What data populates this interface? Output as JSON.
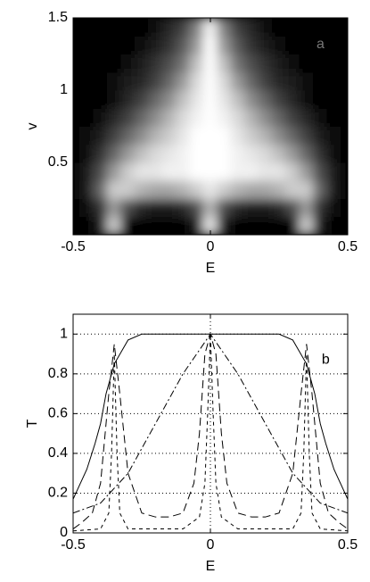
{
  "chart_data": [
    {
      "type": "heatmap",
      "annotation": "a",
      "xlabel": "E",
      "ylabel": "v",
      "xlim": [
        -0.5,
        0.5
      ],
      "ylim": [
        0,
        1.5
      ],
      "xticks": [
        -0.5,
        0,
        0.5
      ],
      "yticks": [
        0.5,
        1,
        1.5
      ],
      "x": [
        -0.5,
        -0.45,
        -0.4,
        -0.35,
        -0.3,
        -0.25,
        -0.2,
        -0.15,
        -0.1,
        -0.05,
        0,
        0.05,
        0.1,
        0.15,
        0.2,
        0.25,
        0.3,
        0.35,
        0.4,
        0.45,
        0.5
      ],
      "y": [
        0.0625,
        0.1875,
        0.3125,
        0.4375,
        0.5625,
        0.6875,
        0.8125,
        0.9375,
        1.0625,
        1.1875,
        1.3125,
        1.4375
      ],
      "z": [
        [
          0,
          0,
          0.1,
          0.8,
          0,
          0,
          0,
          0,
          0,
          0.1,
          0.9,
          0.1,
          0,
          0,
          0,
          0,
          0,
          0.8,
          0.1,
          0,
          0
        ],
        [
          0,
          0.05,
          0.2,
          0.6,
          0.3,
          0.15,
          0.1,
          0.1,
          0.15,
          0.3,
          0.7,
          0.3,
          0.15,
          0.1,
          0.1,
          0.15,
          0.3,
          0.6,
          0.2,
          0.05,
          0
        ],
        [
          0,
          0.1,
          0.4,
          0.8,
          0.8,
          0.7,
          0.65,
          0.65,
          0.7,
          0.8,
          0.9,
          0.8,
          0.7,
          0.65,
          0.65,
          0.7,
          0.8,
          0.8,
          0.4,
          0.1,
          0
        ],
        [
          0,
          0.1,
          0.3,
          0.6,
          0.8,
          0.9,
          0.9,
          0.95,
          0.95,
          1,
          1,
          1,
          0.95,
          0.95,
          0.9,
          0.9,
          0.8,
          0.6,
          0.3,
          0.1,
          0
        ],
        [
          0,
          0.05,
          0.2,
          0.4,
          0.6,
          0.75,
          0.85,
          0.9,
          0.95,
          1,
          1,
          1,
          0.95,
          0.9,
          0.85,
          0.75,
          0.6,
          0.4,
          0.2,
          0.05,
          0
        ],
        [
          0,
          0.05,
          0.1,
          0.25,
          0.4,
          0.55,
          0.7,
          0.8,
          0.9,
          1,
          1,
          1,
          0.9,
          0.8,
          0.7,
          0.55,
          0.4,
          0.25,
          0.1,
          0.05,
          0
        ],
        [
          0,
          0,
          0.05,
          0.15,
          0.25,
          0.4,
          0.55,
          0.7,
          0.85,
          0.95,
          1,
          0.95,
          0.85,
          0.7,
          0.55,
          0.4,
          0.25,
          0.15,
          0.05,
          0,
          0
        ],
        [
          0,
          0,
          0,
          0.05,
          0.15,
          0.25,
          0.4,
          0.55,
          0.75,
          0.9,
          1,
          0.9,
          0.75,
          0.55,
          0.4,
          0.25,
          0.15,
          0.05,
          0,
          0,
          0
        ],
        [
          0,
          0,
          0,
          0.05,
          0.1,
          0.15,
          0.25,
          0.4,
          0.6,
          0.85,
          1,
          0.85,
          0.6,
          0.4,
          0.25,
          0.15,
          0.1,
          0.05,
          0,
          0,
          0
        ],
        [
          0,
          0,
          0,
          0,
          0.05,
          0.1,
          0.2,
          0.3,
          0.45,
          0.75,
          1,
          0.75,
          0.45,
          0.3,
          0.2,
          0.1,
          0.05,
          0,
          0,
          0,
          0
        ],
        [
          0,
          0,
          0,
          0,
          0,
          0.05,
          0.1,
          0.2,
          0.35,
          0.6,
          1,
          0.6,
          0.35,
          0.2,
          0.1,
          0.05,
          0,
          0,
          0,
          0,
          0
        ],
        [
          0,
          0,
          0,
          0,
          0,
          0,
          0.05,
          0.15,
          0.25,
          0.5,
          0.95,
          0.5,
          0.25,
          0.15,
          0.05,
          0,
          0,
          0,
          0,
          0,
          0
        ]
      ]
    },
    {
      "type": "line",
      "annotation": "b",
      "xlabel": "E",
      "ylabel": "T",
      "xlim": [
        -0.5,
        0.5
      ],
      "ylim": [
        0,
        1.1
      ],
      "xticks": [
        -0.5,
        0,
        0.5
      ],
      "yticks": [
        0,
        0.2,
        0.4,
        0.6,
        0.8,
        1
      ],
      "grid": true,
      "series": [
        {
          "color": "#000000",
          "dash": "solid",
          "x": [
            -0.5,
            -0.45,
            -0.42,
            -0.4,
            -0.38,
            -0.35,
            -0.3,
            -0.25,
            -0.2,
            0,
            0.2,
            0.25,
            0.3,
            0.35,
            0.38,
            0.4,
            0.42,
            0.45,
            0.5
          ],
          "values": [
            0.17,
            0.32,
            0.45,
            0.55,
            0.7,
            0.85,
            0.97,
            1,
            1,
            1,
            1,
            1,
            0.97,
            0.85,
            0.7,
            0.55,
            0.45,
            0.32,
            0.17
          ]
        },
        {
          "color": "#000000",
          "dash": "dashdot",
          "x": [
            -0.5,
            -0.4,
            -0.3,
            -0.2,
            -0.1,
            0,
            0.1,
            0.2,
            0.3,
            0.4,
            0.5
          ],
          "values": [
            0.1,
            0.15,
            0.3,
            0.55,
            0.8,
            1,
            0.8,
            0.55,
            0.3,
            0.15,
            0.1
          ]
        },
        {
          "color": "#000000",
          "dash": "dash",
          "x": [
            -0.5,
            -0.47,
            -0.43,
            -0.4,
            -0.37,
            -0.35,
            -0.33,
            -0.3,
            -0.25,
            -0.2,
            -0.15,
            -0.1,
            -0.06,
            -0.04,
            -0.02,
            0,
            0.02,
            0.04,
            0.06,
            0.1,
            0.15,
            0.2,
            0.25,
            0.3,
            0.33,
            0.35,
            0.37,
            0.4,
            0.43,
            0.47,
            0.5
          ],
          "values": [
            0.02,
            0.05,
            0.1,
            0.25,
            0.7,
            0.95,
            0.7,
            0.3,
            0.1,
            0.08,
            0.08,
            0.1,
            0.25,
            0.5,
            0.9,
            1,
            0.9,
            0.5,
            0.25,
            0.1,
            0.08,
            0.08,
            0.1,
            0.3,
            0.7,
            0.95,
            0.7,
            0.25,
            0.1,
            0.05,
            0.02
          ]
        },
        {
          "color": "#000000",
          "dash": "shortdash",
          "x": [
            -0.5,
            -0.4,
            -0.37,
            -0.36,
            -0.35,
            -0.34,
            -0.33,
            -0.3,
            -0.1,
            -0.04,
            -0.02,
            -0.01,
            0,
            0.01,
            0.02,
            0.04,
            0.1,
            0.3,
            0.33,
            0.34,
            0.35,
            0.36,
            0.37,
            0.4,
            0.5
          ],
          "values": [
            0.01,
            0.02,
            0.1,
            0.4,
            0.9,
            0.4,
            0.1,
            0.02,
            0.02,
            0.08,
            0.25,
            0.6,
            1,
            0.6,
            0.25,
            0.08,
            0.02,
            0.02,
            0.1,
            0.4,
            0.9,
            0.4,
            0.1,
            0.02,
            0.01
          ]
        }
      ]
    }
  ]
}
